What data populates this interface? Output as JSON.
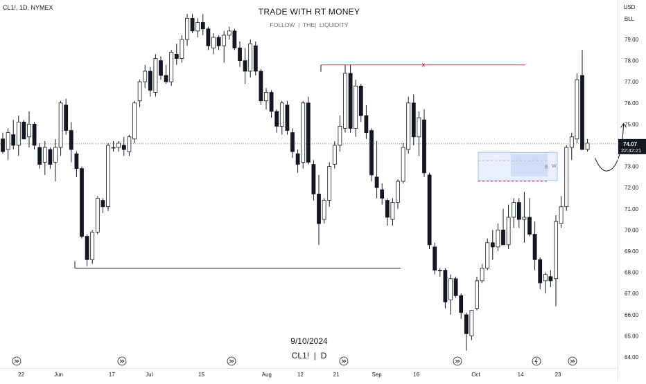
{
  "header": {
    "symbol_line": "CL1!, 1D, NYMEX",
    "title": "TRADE WITH RT MONEY",
    "subtitle": "FOLLOW  |  THE|  LIQUIDITY"
  },
  "footer": {
    "date": "9/10/2024",
    "symbol": "CL1!  |  D"
  },
  "scale_buttons": {
    "currency": "USD",
    "unit": "BLL"
  },
  "last_price": {
    "value": "74.07",
    "countdown": "22:42:21"
  },
  "annotations": {
    "x_mark": "X",
    "b_mark": "B",
    "w_mark": "W"
  },
  "colors": {
    "up_candle_fill": "#ffffff",
    "down_candle_fill": "#131722",
    "wick": "#131722",
    "resistance_line": "#f23645",
    "zone_fill": "#bfd0f7",
    "zone_border": "#a4bdf6",
    "price_label_bg": "#131722",
    "background": "#ffffff"
  },
  "chart_data": {
    "type": "candlestick",
    "ylim": [
      63.6,
      80.3
    ],
    "y_ticks": [
      "79.00",
      "78.00",
      "77.00",
      "76.00",
      "75.00",
      "74.00",
      "73.00",
      "72.00",
      "71.00",
      "70.00",
      "69.00",
      "68.00",
      "67.00",
      "66.00",
      "65.00",
      "64.00"
    ],
    "x_ticks": [
      {
        "label": "22",
        "bar": 3.5
      },
      {
        "label": "Jun",
        "bar": 10.6
      },
      {
        "label": "17",
        "bar": 20.7
      },
      {
        "label": "Jul",
        "bar": 27.8
      },
      {
        "label": "15",
        "bar": 37.7
      },
      {
        "label": "Aug",
        "bar": 50.1
      },
      {
        "label": "12",
        "bar": 56.5
      },
      {
        "label": "21",
        "bar": 63.3
      },
      {
        "label": "Sep",
        "bar": 71.0
      },
      {
        "label": "16",
        "bar": 78.5
      },
      {
        "label": "Oct",
        "bar": 89.8
      },
      {
        "label": "14",
        "bar": 98.3
      },
      {
        "label": "23",
        "bar": 105.4
      }
    ],
    "candles": [
      [
        74.3,
        74.6,
        73.6,
        73.7
      ],
      [
        73.8,
        74.8,
        73.3,
        74.6
      ],
      [
        74.5,
        75.2,
        73.8,
        74.0
      ],
      [
        74.0,
        75.4,
        73.5,
        75.1
      ],
      [
        75.1,
        75.2,
        74.3,
        74.3
      ],
      [
        74.4,
        75.6,
        73.9,
        75.0
      ],
      [
        75.0,
        75.1,
        73.8,
        74.0
      ],
      [
        73.9,
        74.1,
        72.9,
        73.1
      ],
      [
        73.2,
        74.2,
        72.6,
        73.9
      ],
      [
        73.8,
        73.9,
        72.9,
        73.1
      ],
      [
        73.2,
        74.3,
        72.3,
        73.9
      ],
      [
        73.9,
        76.1,
        73.5,
        76.0
      ],
      [
        75.9,
        76.2,
        74.5,
        74.7
      ],
      [
        74.7,
        75.1,
        73.2,
        73.8
      ],
      [
        73.6,
        73.7,
        72.5,
        72.9
      ],
      [
        72.9,
        73.0,
        69.6,
        69.7
      ],
      [
        69.7,
        69.8,
        68.3,
        68.6
      ],
      [
        68.6,
        70.0,
        68.4,
        69.9
      ],
      [
        69.9,
        71.6,
        69.8,
        71.5
      ],
      [
        71.4,
        71.5,
        70.8,
        71.1
      ],
      [
        71.1,
        74.1,
        70.9,
        74.0
      ],
      [
        73.9,
        74.2,
        73.7,
        73.9
      ],
      [
        73.9,
        74.2,
        73.7,
        74.1
      ],
      [
        74.0,
        74.4,
        73.5,
        73.8
      ],
      [
        73.7,
        74.5,
        73.5,
        74.4
      ],
      [
        74.3,
        76.1,
        74.1,
        76.0
      ],
      [
        76.1,
        77.1,
        75.8,
        77.0
      ],
      [
        77.0,
        77.8,
        76.7,
        77.5
      ],
      [
        77.5,
        77.7,
        76.3,
        76.6
      ],
      [
        76.5,
        78.3,
        76.3,
        78.1
      ],
      [
        78.0,
        78.2,
        77.1,
        77.3
      ],
      [
        77.3,
        77.8,
        76.9,
        77.0
      ],
      [
        77.0,
        78.5,
        76.8,
        78.4
      ],
      [
        78.3,
        78.8,
        77.8,
        78.1
      ],
      [
        78.1,
        79.2,
        77.9,
        79.0
      ],
      [
        79.0,
        80.2,
        78.7,
        80.0
      ],
      [
        80.0,
        80.2,
        79.3,
        79.4
      ],
      [
        79.4,
        80.0,
        79.1,
        79.8
      ],
      [
        79.8,
        80.2,
        79.2,
        79.5
      ],
      [
        79.5,
        79.6,
        78.5,
        78.7
      ],
      [
        78.6,
        79.3,
        78.3,
        79.1
      ],
      [
        79.1,
        79.2,
        78.5,
        78.7
      ],
      [
        78.7,
        79.4,
        77.9,
        79.2
      ],
      [
        79.2,
        79.6,
        79.0,
        79.4
      ],
      [
        79.4,
        79.5,
        78.5,
        78.6
      ],
      [
        78.6,
        78.9,
        77.7,
        78.0
      ],
      [
        78.0,
        78.6,
        76.9,
        77.5
      ],
      [
        77.5,
        79.0,
        77.2,
        78.8
      ],
      [
        78.7,
        78.9,
        77.3,
        77.5
      ],
      [
        77.5,
        77.6,
        75.9,
        76.1
      ],
      [
        76.1,
        76.7,
        75.7,
        76.5
      ],
      [
        76.5,
        76.6,
        75.3,
        75.6
      ],
      [
        75.6,
        75.7,
        74.6,
        74.9
      ],
      [
        74.9,
        76.1,
        74.5,
        76.0
      ],
      [
        75.9,
        76.1,
        74.5,
        74.7
      ],
      [
        74.6,
        74.8,
        73.4,
        73.7
      ],
      [
        73.6,
        73.8,
        72.7,
        73.1
      ],
      [
        73.2,
        76.1,
        72.9,
        76.0
      ],
      [
        76.0,
        76.3,
        73.1,
        73.2
      ],
      [
        73.1,
        73.3,
        71.4,
        71.7
      ],
      [
        71.7,
        72.6,
        69.3,
        70.3
      ],
      [
        70.5,
        71.5,
        70.3,
        71.4
      ],
      [
        71.4,
        73.2,
        71.1,
        73.0
      ],
      [
        73.1,
        74.2,
        72.9,
        74.0
      ],
      [
        74.0,
        75.4,
        73.7,
        74.9
      ],
      [
        74.8,
        77.8,
        74.6,
        77.4
      ],
      [
        77.4,
        77.8,
        74.6,
        74.8
      ],
      [
        74.8,
        77.1,
        74.4,
        76.8
      ],
      [
        76.8,
        76.9,
        75.1,
        75.4
      ],
      [
        75.4,
        75.9,
        74.3,
        74.6
      ],
      [
        74.7,
        74.8,
        72.3,
        72.6
      ],
      [
        72.5,
        74.2,
        71.5,
        72.0
      ],
      [
        71.9,
        72.2,
        71.2,
        71.5
      ],
      [
        71.4,
        71.5,
        70.2,
        70.6
      ],
      [
        70.5,
        71.5,
        70.2,
        71.3
      ],
      [
        71.3,
        72.4,
        71.0,
        72.3
      ],
      [
        72.3,
        74.1,
        72.2,
        73.9
      ],
      [
        73.8,
        76.3,
        73.6,
        76.0
      ],
      [
        76.0,
        76.4,
        74.0,
        74.4
      ],
      [
        74.4,
        75.6,
        73.5,
        75.3
      ],
      [
        75.2,
        75.7,
        72.5,
        72.7
      ],
      [
        72.6,
        72.7,
        69.1,
        69.3
      ],
      [
        69.2,
        69.4,
        67.9,
        68.1
      ],
      [
        68.1,
        68.2,
        67.8,
        68.1
      ],
      [
        68.1,
        68.2,
        66.3,
        66.6
      ],
      [
        66.7,
        67.9,
        66.0,
        67.7
      ],
      [
        67.7,
        67.8,
        66.8,
        66.9
      ],
      [
        66.9,
        67.0,
        65.8,
        66.1
      ],
      [
        66.0,
        66.1,
        64.3,
        65.1
      ],
      [
        65.0,
        66.2,
        64.8,
        66.2
      ],
      [
        66.3,
        67.8,
        66.2,
        67.6
      ],
      [
        67.6,
        68.4,
        67.5,
        68.2
      ],
      [
        68.2,
        69.6,
        68.1,
        69.4
      ],
      [
        69.4,
        70.0,
        68.6,
        69.2
      ],
      [
        69.2,
        70.3,
        69.0,
        70.0
      ],
      [
        70.0,
        71.0,
        69.3,
        69.3
      ],
      [
        69.3,
        71.2,
        69.1,
        70.6
      ],
      [
        70.6,
        71.5,
        70.1,
        71.3
      ],
      [
        71.3,
        71.5,
        70.1,
        70.5
      ],
      [
        70.5,
        71.8,
        69.4,
        70.6
      ],
      [
        70.6,
        71.5,
        69.7,
        69.8
      ],
      [
        69.8,
        70.4,
        68.1,
        68.6
      ],
      [
        68.6,
        68.7,
        67.2,
        67.5
      ],
      [
        67.6,
        68.0,
        67.0,
        67.9
      ],
      [
        67.8,
        68.1,
        67.3,
        67.6
      ],
      [
        67.7,
        70.7,
        66.4,
        70.4
      ],
      [
        70.3,
        71.6,
        70.1,
        71.1
      ],
      [
        71.1,
        74.0,
        70.9,
        73.9
      ],
      [
        73.9,
        74.6,
        73.3,
        74.4
      ],
      [
        74.3,
        77.4,
        74.1,
        77.1
      ],
      [
        77.3,
        78.5,
        73.8,
        73.8
      ],
      [
        73.8,
        74.3,
        73.7,
        74.1
      ]
    ],
    "last_price": 74.07,
    "resistance_level": 77.8,
    "liquidity_level": 68.2,
    "zone": {
      "high": 73.6,
      "low": 72.4
    }
  }
}
